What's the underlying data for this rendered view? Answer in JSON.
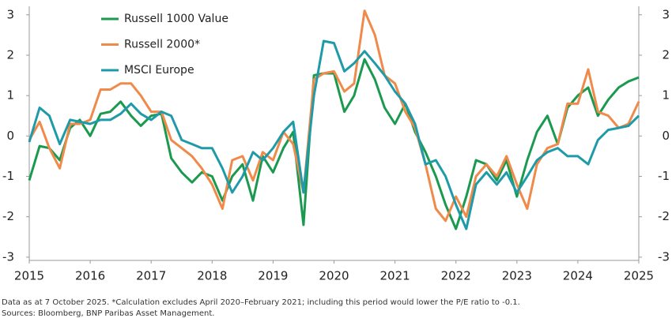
{
  "chart_data": {
    "type": "line",
    "x": [
      2015,
      2015.17,
      2015.33,
      2015.5,
      2015.67,
      2015.83,
      2016,
      2016.17,
      2016.33,
      2016.5,
      2016.67,
      2016.83,
      2017,
      2017.17,
      2017.33,
      2017.5,
      2017.67,
      2017.83,
      2018,
      2018.17,
      2018.33,
      2018.5,
      2018.67,
      2018.83,
      2019,
      2019.17,
      2019.33,
      2019.5,
      2019.67,
      2019.83,
      2020,
      2020.17,
      2020.33,
      2020.5,
      2020.67,
      2020.83,
      2021,
      2021.17,
      2021.33,
      2021.5,
      2021.67,
      2021.83,
      2022,
      2022.17,
      2022.33,
      2022.5,
      2022.67,
      2022.83,
      2023,
      2023.17,
      2023.33,
      2023.5,
      2023.67,
      2023.83,
      2024,
      2024.17,
      2024.33,
      2024.5,
      2024.67,
      2024.83,
      2025
    ],
    "series": [
      {
        "name": "Russell 1000 Value",
        "color": "#1b9a4f",
        "values": [
          -1.1,
          -0.25,
          -0.3,
          -0.6,
          0.2,
          0.4,
          0.0,
          0.55,
          0.6,
          0.85,
          0.5,
          0.25,
          0.5,
          0.55,
          -0.55,
          -0.9,
          -1.15,
          -0.9,
          -1.0,
          -1.6,
          -1.0,
          -0.7,
          -1.6,
          -0.5,
          -0.9,
          -0.3,
          0.1,
          -2.2,
          1.5,
          1.55,
          1.55,
          0.6,
          1.0,
          1.9,
          1.4,
          0.7,
          0.3,
          0.8,
          0.1,
          -0.4,
          -1.0,
          -1.7,
          -2.3,
          -1.5,
          -0.6,
          -0.7,
          -1.1,
          -0.6,
          -1.5,
          -0.6,
          0.1,
          0.5,
          -0.2,
          0.7,
          1.0,
          1.2,
          0.5,
          0.9,
          1.2,
          1.35,
          1.45
        ]
      },
      {
        "name": "Russell 2000*",
        "color": "#f08a4b",
        "values": [
          -0.1,
          0.35,
          -0.3,
          -0.8,
          0.3,
          0.3,
          0.4,
          1.15,
          1.15,
          1.3,
          1.3,
          1.0,
          0.6,
          0.6,
          -0.1,
          -0.3,
          -0.5,
          -0.8,
          -1.2,
          -1.8,
          -0.6,
          -0.5,
          -1.1,
          -0.4,
          -0.6,
          0.1,
          -0.2,
          -1.4,
          1.4,
          1.55,
          1.6,
          1.1,
          1.3,
          3.1,
          2.5,
          1.5,
          1.3,
          0.6,
          0.2,
          -0.7,
          -1.8,
          -2.1,
          -1.5,
          -2.0,
          -1.0,
          -0.7,
          -1.0,
          -0.5,
          -1.2,
          -1.8,
          -0.7,
          -0.3,
          -0.2,
          0.8,
          0.8,
          1.65,
          0.6,
          0.5,
          0.2,
          0.3,
          0.85
        ]
      },
      {
        "name": "MSCI Europe",
        "color": "#1f9aa8",
        "values": [
          -0.15,
          0.7,
          0.5,
          -0.2,
          0.4,
          0.35,
          0.3,
          0.4,
          0.4,
          0.55,
          0.8,
          0.55,
          0.4,
          0.6,
          0.5,
          -0.1,
          -0.2,
          -0.3,
          -0.3,
          -0.8,
          -1.4,
          -1.0,
          -0.4,
          -0.6,
          -0.3,
          0.1,
          0.35,
          -1.4,
          1.0,
          2.35,
          2.3,
          1.6,
          1.8,
          2.1,
          1.8,
          1.5,
          1.1,
          0.8,
          0.3,
          -0.7,
          -0.6,
          -1.0,
          -1.7,
          -2.3,
          -1.2,
          -0.9,
          -1.2,
          -0.9,
          -1.4,
          -1.0,
          -0.6,
          -0.4,
          -0.3,
          -0.5,
          -0.5,
          -0.7,
          -0.1,
          0.15,
          0.2,
          0.25,
          0.5
        ]
      }
    ],
    "xlim": [
      2015,
      2025
    ],
    "xticks": [
      2015,
      2016,
      2017,
      2018,
      2019,
      2020,
      2021,
      2022,
      2023,
      2024,
      2025
    ],
    "ylim": [
      -3.08,
      3.21
    ],
    "yticks": [
      -3,
      -2,
      -1,
      0,
      1,
      2,
      3
    ],
    "y2lim": [
      -3.08,
      3.21
    ],
    "y2ticks": [
      -3,
      -2,
      -1,
      0,
      1,
      2,
      3
    ],
    "legend": "upper left",
    "notes": [
      "Data as at 7 October 2025. *Calculation excludes April 2020–February 2021; including this period would lower the P/E ratio to -0.1.",
      "Sources: Bloomberg, BNP Paribas Asset Management."
    ]
  }
}
